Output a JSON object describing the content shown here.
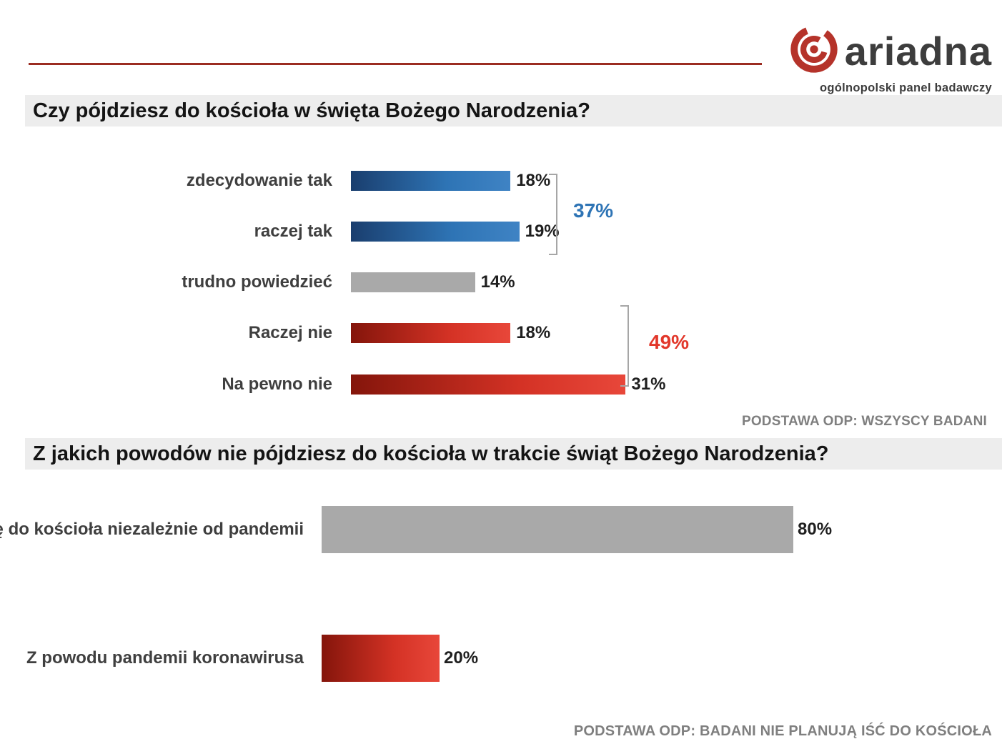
{
  "logo": {
    "brand": "ariadna",
    "subtitle": "ogólnopolski panel badawczy"
  },
  "colors": {
    "accent_line": "#9b2c21",
    "logo_red": "#b5332a",
    "blue_bar_dark": "#1a3e6e",
    "blue_bar_light": "#3f83c4",
    "red_bar_dark": "#84150b",
    "red_bar_light": "#e8473a",
    "gray_bar": "#a9a9a9",
    "group_blue": "#2e74b5",
    "group_red": "#e2372a",
    "note_gray": "#7f7f7f",
    "title_bg": "#ededed"
  },
  "chart_data": [
    {
      "type": "bar",
      "orientation": "horizontal",
      "title": "Czy pójdziesz do kościoła w święta Bożego Narodzenia?",
      "categories": [
        "zdecydowanie tak",
        "raczej tak",
        "trudno powiedzieć",
        "Raczej nie",
        "Na pewno nie"
      ],
      "values": [
        18,
        19,
        14,
        18,
        31
      ],
      "value_labels": [
        "18%",
        "19%",
        "14%",
        "18%",
        "31%"
      ],
      "bar_colors": [
        "blue",
        "blue",
        "gray",
        "red",
        "red"
      ],
      "xlim": [
        0,
        100
      ],
      "annotations": [
        {
          "label": "37%",
          "covers": [
            "zdecydowanie tak",
            "raczej tak"
          ],
          "color": "#2e74b5"
        },
        {
          "label": "49%",
          "covers": [
            "Raczej nie",
            "Na pewno nie"
          ],
          "color": "#e2372a"
        }
      ],
      "note": "PODSTAWA ODP: WSZYSCY BADANI"
    },
    {
      "type": "bar",
      "orientation": "horizontal",
      "title": "Z jakich powodów nie pójdziesz do kościoła w trakcie świąt Bożego Narodzenia?",
      "categories": [
        "ę do kościoła niezależnie od pandemii",
        "Z powodu pandemii koronawirusa"
      ],
      "values": [
        80,
        20
      ],
      "value_labels": [
        "80%",
        "20%"
      ],
      "bar_colors": [
        "gray",
        "red"
      ],
      "xlim": [
        0,
        100
      ],
      "note": "PODSTAWA ODP: BADANI NIE PLANUJĄ IŚĆ DO KOŚCIOŁA"
    }
  ]
}
